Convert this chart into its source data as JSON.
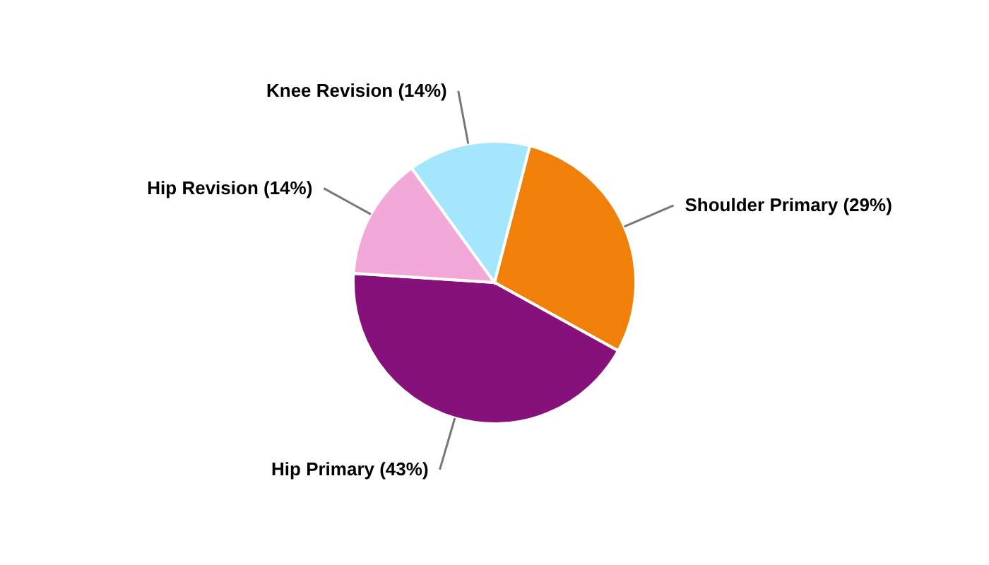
{
  "chart_data": {
    "type": "pie",
    "categories": [
      "Shoulder Primary",
      "Hip Primary",
      "Hip Revision",
      "Knee Revision"
    ],
    "values": [
      29,
      43,
      14,
      14
    ],
    "value_labels": [
      "(29%)",
      "(43%)",
      "(14%)",
      "(14%)"
    ],
    "colors": [
      "#f0800a",
      "#86117b",
      "#f2a9da",
      "#a4e6fc"
    ],
    "legend": false
  }
}
